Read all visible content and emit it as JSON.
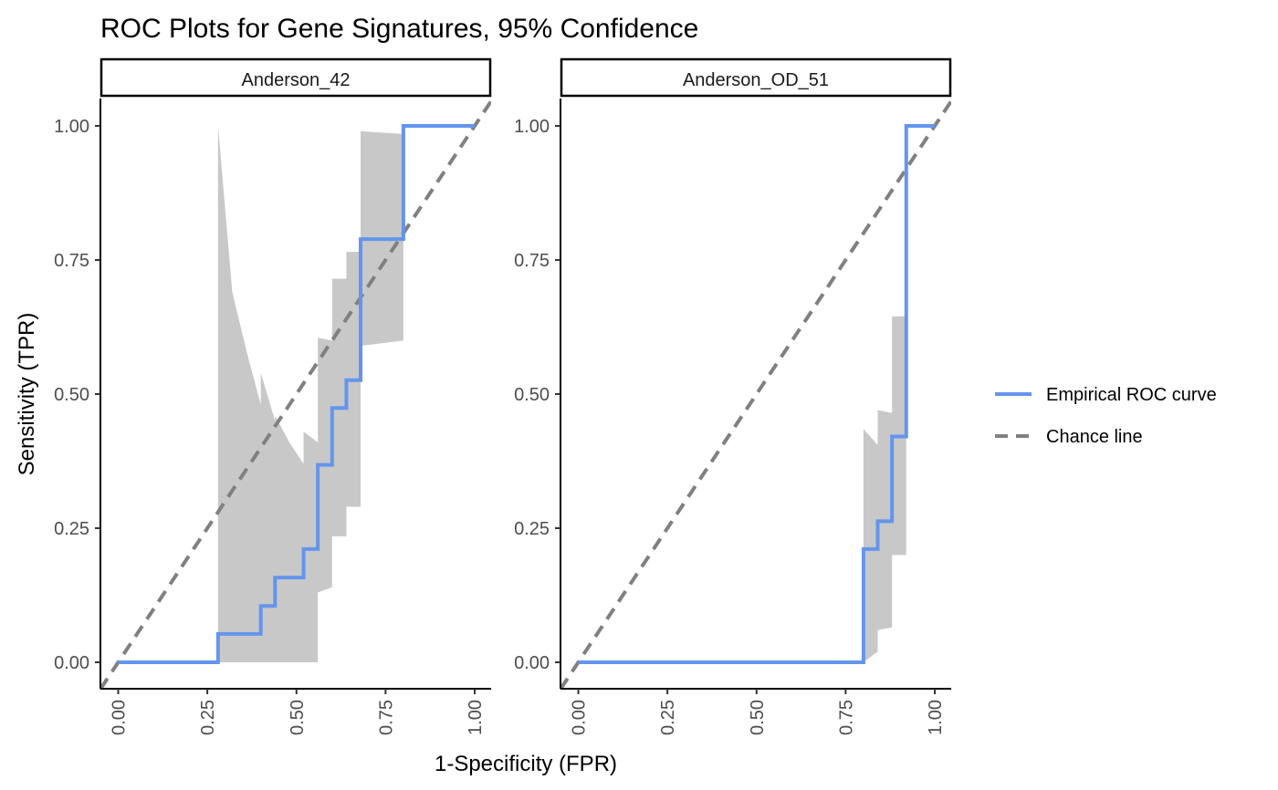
{
  "chart_data": {
    "type": "line",
    "title": "ROC Plots for Gene Signatures, 95% Confidence",
    "xlabel": "1-Specificity (FPR)",
    "ylabel": "Sensitivity (TPR)",
    "xlim": [
      0,
      1
    ],
    "ylim": [
      0,
      1
    ],
    "x_ticks": [
      "0.00",
      "0.25",
      "0.50",
      "0.75",
      "1.00"
    ],
    "y_ticks": [
      "0.00",
      "0.25",
      "0.50",
      "0.75",
      "1.00"
    ],
    "legend": {
      "placement": "right",
      "items": [
        {
          "label": "Empirical ROC curve",
          "color": "#6495ED",
          "style": "solid"
        },
        {
          "label": "Chance line",
          "color": "#808080",
          "style": "dashed"
        }
      ]
    },
    "grid": false,
    "panels": [
      {
        "strip": "Anderson_42",
        "roc_curve": [
          [
            0,
            0
          ],
          [
            0.28,
            0
          ],
          [
            0.28,
            0.053
          ],
          [
            0.4,
            0.053
          ],
          [
            0.4,
            0.105
          ],
          [
            0.44,
            0.105
          ],
          [
            0.44,
            0.158
          ],
          [
            0.52,
            0.158
          ],
          [
            0.52,
            0.211
          ],
          [
            0.56,
            0.211
          ],
          [
            0.56,
            0.368
          ],
          [
            0.6,
            0.368
          ],
          [
            0.6,
            0.474
          ],
          [
            0.64,
            0.474
          ],
          [
            0.64,
            0.526
          ],
          [
            0.68,
            0.526
          ],
          [
            0.68,
            0.789
          ],
          [
            0.8,
            0.789
          ],
          [
            0.8,
            1
          ],
          [
            1,
            1
          ]
        ],
        "ci_upper": [
          [
            0.28,
            1.0
          ],
          [
            0.32,
            0.69
          ],
          [
            0.36,
            0.58
          ],
          [
            0.4,
            0.48
          ],
          [
            0.4,
            0.54
          ],
          [
            0.44,
            0.45
          ],
          [
            0.44,
            0.46
          ],
          [
            0.48,
            0.41
          ],
          [
            0.52,
            0.37
          ],
          [
            0.52,
            0.43
          ],
          [
            0.56,
            0.41
          ],
          [
            0.56,
            0.605
          ],
          [
            0.6,
            0.6
          ],
          [
            0.6,
            0.715
          ],
          [
            0.64,
            0.715
          ],
          [
            0.64,
            0.765
          ],
          [
            0.68,
            0.765
          ],
          [
            0.68,
            0.99
          ],
          [
            0.8,
            0.985
          ]
        ],
        "ci_lower": [
          [
            0.28,
            0.0
          ],
          [
            0.56,
            0.0
          ],
          [
            0.56,
            0.13
          ],
          [
            0.6,
            0.14
          ],
          [
            0.6,
            0.235
          ],
          [
            0.64,
            0.235
          ],
          [
            0.64,
            0.29
          ],
          [
            0.68,
            0.29
          ],
          [
            0.68,
            0.59
          ],
          [
            0.8,
            0.6
          ]
        ]
      },
      {
        "strip": "Anderson_OD_51",
        "roc_curve": [
          [
            0,
            0
          ],
          [
            0.8,
            0
          ],
          [
            0.8,
            0.211
          ],
          [
            0.84,
            0.211
          ],
          [
            0.84,
            0.263
          ],
          [
            0.88,
            0.263
          ],
          [
            0.88,
            0.421
          ],
          [
            0.92,
            0.421
          ],
          [
            0.92,
            1
          ],
          [
            1,
            1
          ]
        ],
        "ci_upper": [
          [
            0.8,
            0.435
          ],
          [
            0.84,
            0.405
          ],
          [
            0.84,
            0.47
          ],
          [
            0.88,
            0.465
          ],
          [
            0.88,
            0.645
          ],
          [
            0.92,
            0.645
          ]
        ],
        "ci_lower": [
          [
            0.8,
            0.0
          ],
          [
            0.84,
            0.02
          ],
          [
            0.84,
            0.06
          ],
          [
            0.88,
            0.065
          ],
          [
            0.88,
            0.2
          ],
          [
            0.92,
            0.2
          ]
        ]
      }
    ]
  },
  "colors": {
    "roc_line": "#6495ED",
    "chance_line": "#808080",
    "ci_band": "#C8C8C8",
    "axis": "#000000",
    "tick_text": "#4D4D4D"
  }
}
